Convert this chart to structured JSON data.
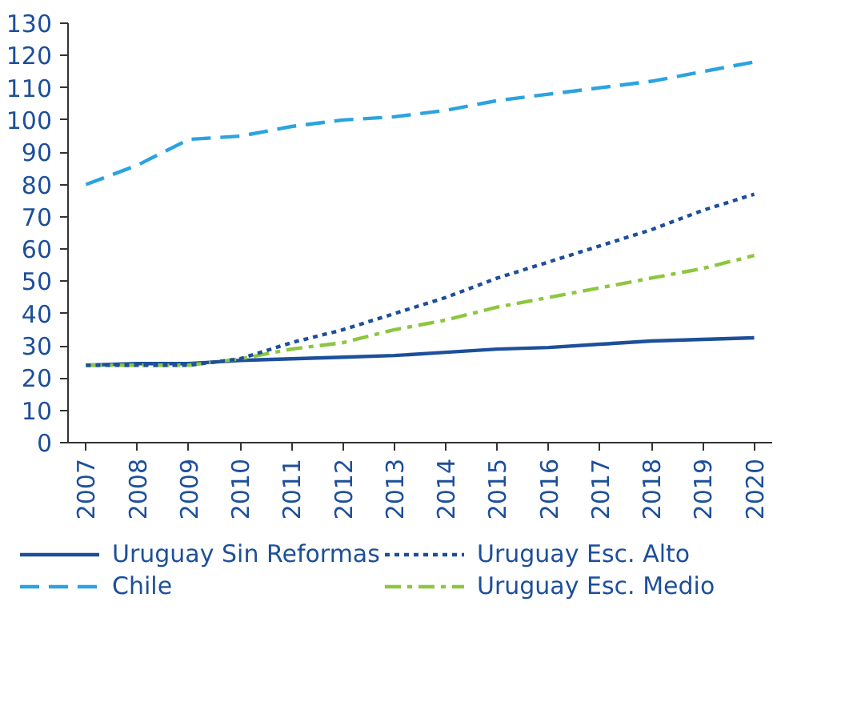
{
  "chart_data": {
    "type": "line",
    "categories": [
      "2007",
      "2008",
      "2009",
      "2010",
      "2011",
      "2012",
      "2013",
      "2014",
      "2015",
      "2016",
      "2017",
      "2018",
      "2019",
      "2020"
    ],
    "ylim": [
      0,
      130
    ],
    "yticks": [
      0,
      10,
      20,
      30,
      40,
      50,
      60,
      70,
      80,
      90,
      100,
      110,
      120,
      130
    ],
    "grid": false,
    "legend": "bottom",
    "series": [
      {
        "name": "Uruguay Sin Reformas",
        "color": "#1d4f9a",
        "line_style": "solid",
        "values": [
          24,
          24.5,
          24.5,
          25.5,
          26,
          26.5,
          27,
          28,
          29,
          29.5,
          30.5,
          31.5,
          32,
          32.5
        ]
      },
      {
        "name": "Chile",
        "color": "#2ba3e0",
        "line_style": "dashed",
        "values": [
          80,
          86,
          94,
          95,
          98,
          100,
          101,
          103,
          106,
          108,
          110,
          112,
          115,
          118
        ]
      },
      {
        "name": "Uruguay Esc. Alto",
        "color": "#1d4f9a",
        "line_style": "dotted",
        "values": [
          24,
          24,
          24,
          26,
          31,
          35,
          40,
          45,
          51,
          56,
          61,
          66,
          72,
          77
        ]
      },
      {
        "name": "Uruguay Esc. Medio",
        "color": "#8dc63f",
        "line_style": "dashdot",
        "values": [
          24,
          24,
          24,
          26,
          29,
          31,
          35,
          38,
          42,
          45,
          48,
          51,
          54,
          58
        ]
      }
    ]
  }
}
